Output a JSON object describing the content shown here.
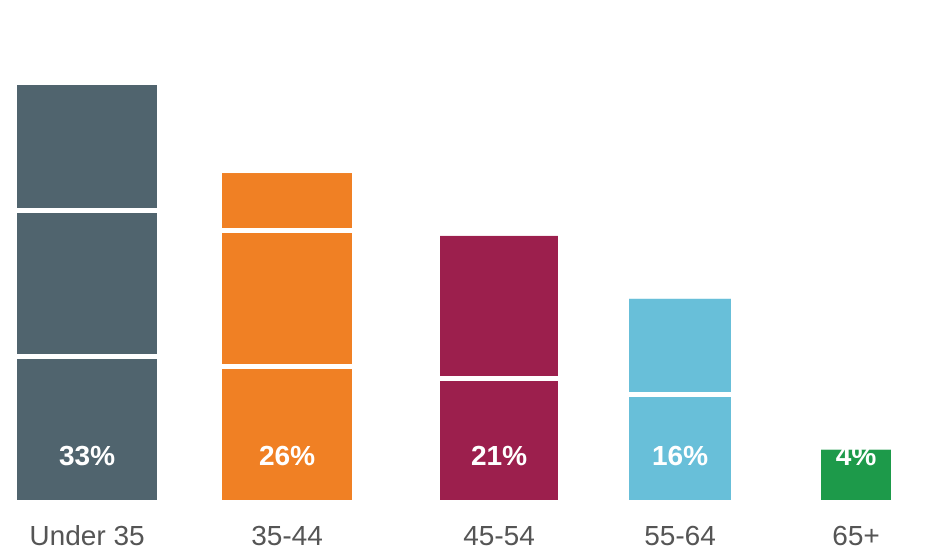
{
  "chart_data": {
    "type": "bar",
    "categories": [
      "Under 35",
      "35-44",
      "45-54",
      "55-64",
      "65+"
    ],
    "values": [
      33,
      26,
      21,
      16,
      4
    ],
    "value_labels": [
      "33%",
      "26%",
      "21%",
      "16%",
      "4%"
    ],
    "colors": [
      "#50646e",
      "#f08024",
      "#9c1f4d",
      "#68bfd9",
      "#1d9a4a"
    ]
  }
}
